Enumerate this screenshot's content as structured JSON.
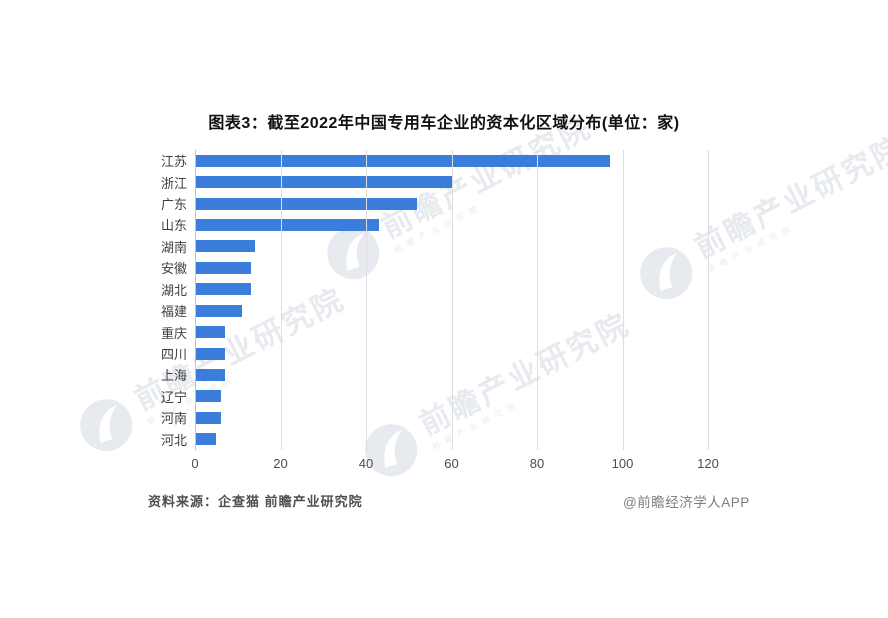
{
  "title": "图表3：截至2022年中国专用车企业的资本化区域分布(单位：家)",
  "chart_data": {
    "type": "bar",
    "orientation": "horizontal",
    "title": "图表3：截至2022年中国专用车企业的资本化区域分布(单位：家)",
    "categories": [
      "江苏",
      "浙江",
      "广东",
      "山东",
      "湖南",
      "安徽",
      "湖北",
      "福建",
      "重庆",
      "四川",
      "上海",
      "辽宁",
      "河南",
      "河北"
    ],
    "values": [
      97,
      60,
      52,
      43,
      14,
      13,
      13,
      11,
      7,
      7,
      7,
      6,
      6,
      5
    ],
    "unit": "家",
    "xlabel": "",
    "ylabel": "",
    "xlim": [
      0,
      120
    ],
    "x_ticks": [
      0,
      20,
      40,
      60,
      80,
      100,
      120
    ],
    "grid": "vertical",
    "legend": "none"
  },
  "footer": {
    "source": "资料来源：企查猫 前瞻产业研究院",
    "credit": "@前瞻经济学人APP"
  },
  "watermark": {
    "text": "前瞻产业研究院"
  },
  "colors": {
    "bar": "#3B7DDA",
    "grid": "#DCDEE1",
    "axis": "#BFC3C7",
    "tick_label": "#4D4D4D",
    "category_label": "#3F3F3F",
    "title": "#111111",
    "watermark": "#E7EAEF",
    "source": "#4F4F4F",
    "credit": "#7D7D7D"
  }
}
